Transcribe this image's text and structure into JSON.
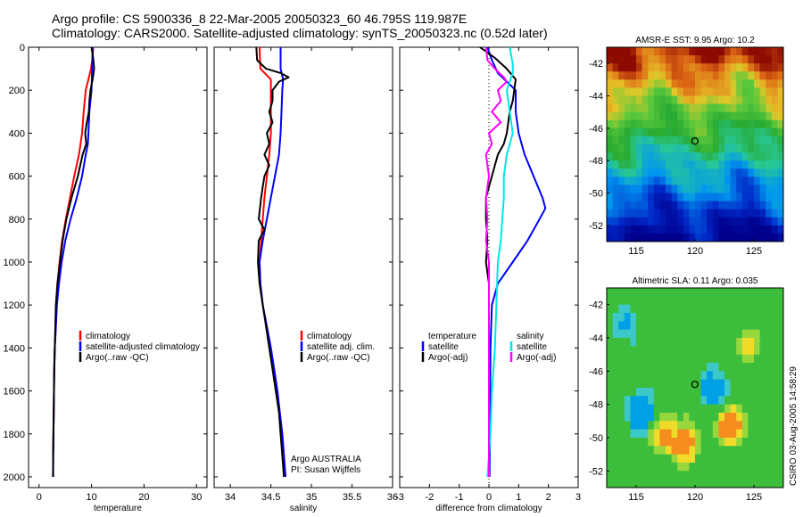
{
  "header": {
    "line1": "Argo profile: CS 5900336_8 22-Mar-2005 20050323_60 46.795S 119.987E",
    "line2": "Climatology: CARS2000. Satellite-adjusted climatology: synTS_20050323.nc (0.52d later)"
  },
  "colors": {
    "climatology": "#ff0000",
    "satellite": "#0000ff",
    "argo": "#000000",
    "salinity_satellite": "#00e5e5",
    "salinity_argo": "#ff00ff"
  },
  "chart_data": [
    {
      "id": "temperature",
      "type": "line",
      "xlabel": "temperature",
      "xlim": [
        -2,
        32
      ],
      "ylim": [
        2050,
        0
      ],
      "xticks": [
        0,
        10,
        20,
        30
      ],
      "yticks": [
        0,
        200,
        400,
        600,
        800,
        1000,
        1200,
        1400,
        1600,
        1800,
        2000
      ],
      "legend": [
        "climatology",
        "satellite-adjusted climatology",
        "Argo(..raw -QC)"
      ],
      "series": [
        {
          "name": "climatology",
          "color": "#ff0000",
          "points": [
            [
              10.3,
              0
            ],
            [
              10.2,
              50
            ],
            [
              9.9,
              100
            ],
            [
              9.4,
              150
            ],
            [
              8.9,
              200
            ],
            [
              8.5,
              300
            ],
            [
              8.2,
              400
            ],
            [
              7.6,
              500
            ],
            [
              6.7,
              600
            ],
            [
              5.9,
              700
            ],
            [
              5.1,
              800
            ],
            [
              4.4,
              900
            ],
            [
              3.9,
              1000
            ],
            [
              3.5,
              1100
            ],
            [
              3.3,
              1200
            ],
            [
              3.2,
              1300
            ],
            [
              3.0,
              1400
            ],
            [
              2.9,
              1500
            ],
            [
              2.85,
              1600
            ],
            [
              2.8,
              1700
            ],
            [
              2.75,
              1800
            ],
            [
              2.7,
              1900
            ],
            [
              2.65,
              2000
            ]
          ]
        },
        {
          "name": "satellite-adjusted climatology",
          "color": "#0000ff",
          "points": [
            [
              10.2,
              0
            ],
            [
              10.1,
              100
            ],
            [
              10.0,
              200
            ],
            [
              9.6,
              300
            ],
            [
              9.4,
              400
            ],
            [
              9.3,
              450
            ],
            [
              8.9,
              500
            ],
            [
              8.2,
              600
            ],
            [
              7.2,
              700
            ],
            [
              6.0,
              800
            ],
            [
              5.0,
              900
            ],
            [
              4.3,
              1000
            ],
            [
              3.8,
              1100
            ],
            [
              3.4,
              1200
            ],
            [
              3.2,
              1300
            ],
            [
              3.0,
              1400
            ],
            [
              2.9,
              1500
            ],
            [
              2.85,
              1600
            ],
            [
              2.8,
              1700
            ],
            [
              2.75,
              1800
            ],
            [
              2.7,
              1900
            ],
            [
              2.65,
              2000
            ]
          ]
        },
        {
          "name": "Argo(..raw -QC)",
          "color": "#000000",
          "points": [
            [
              10.0,
              0
            ],
            [
              10.3,
              50
            ],
            [
              10.5,
              100
            ],
            [
              10.2,
              150
            ],
            [
              9.8,
              200
            ],
            [
              9.6,
              250
            ],
            [
              9.5,
              300
            ],
            [
              9.1,
              350
            ],
            [
              8.8,
              400
            ],
            [
              9.0,
              450
            ],
            [
              8.3,
              500
            ],
            [
              7.4,
              600
            ],
            [
              6.2,
              700
            ],
            [
              5.2,
              800
            ],
            [
              4.5,
              900
            ],
            [
              4.0,
              1000
            ],
            [
              3.5,
              1100
            ],
            [
              3.2,
              1200
            ],
            [
              3.1,
              1300
            ],
            [
              3.0,
              1400
            ],
            [
              2.9,
              1500
            ],
            [
              2.85,
              1600
            ],
            [
              2.8,
              1700
            ],
            [
              2.75,
              1800
            ],
            [
              2.7,
              1900
            ],
            [
              2.7,
              2000
            ]
          ]
        }
      ]
    },
    {
      "id": "salinity",
      "type": "line",
      "xlabel": "salinity",
      "xlim": [
        33.8,
        36.0
      ],
      "ylim": [
        2050,
        0
      ],
      "xticks": [
        34,
        34.5,
        35,
        35.5,
        36
      ],
      "legend": [
        "climatology",
        "satellite adj. clim.",
        "Argo(..raw -QC)"
      ],
      "annotation": [
        "Argo AUSTRALIA",
        "PI: Susan Wijffels"
      ],
      "series": [
        {
          "name": "climatology",
          "color": "#ff0000",
          "points": [
            [
              34.36,
              0
            ],
            [
              34.37,
              100
            ],
            [
              34.5,
              150
            ],
            [
              34.5,
              200
            ],
            [
              34.5,
              400
            ],
            [
              34.48,
              500
            ],
            [
              34.45,
              600
            ],
            [
              34.42,
              700
            ],
            [
              34.4,
              800
            ],
            [
              34.38,
              900
            ],
            [
              34.36,
              1000
            ],
            [
              34.37,
              1100
            ],
            [
              34.4,
              1200
            ],
            [
              34.45,
              1300
            ],
            [
              34.5,
              1400
            ],
            [
              34.54,
              1500
            ],
            [
              34.58,
              1600
            ],
            [
              34.61,
              1700
            ],
            [
              34.64,
              1800
            ],
            [
              34.66,
              1900
            ],
            [
              34.68,
              2000
            ]
          ]
        },
        {
          "name": "satellite adj. clim.",
          "color": "#0000ff",
          "points": [
            [
              34.62,
              0
            ],
            [
              34.62,
              100
            ],
            [
              34.65,
              150
            ],
            [
              34.64,
              200
            ],
            [
              34.63,
              300
            ],
            [
              34.62,
              400
            ],
            [
              34.6,
              500
            ],
            [
              34.55,
              600
            ],
            [
              34.5,
              700
            ],
            [
              34.45,
              800
            ],
            [
              34.4,
              900
            ],
            [
              34.36,
              1000
            ],
            [
              34.37,
              1100
            ],
            [
              34.4,
              1200
            ],
            [
              34.45,
              1300
            ],
            [
              34.5,
              1400
            ],
            [
              34.54,
              1500
            ],
            [
              34.58,
              1600
            ],
            [
              34.61,
              1700
            ],
            [
              34.64,
              1800
            ],
            [
              34.66,
              1900
            ],
            [
              34.68,
              2000
            ]
          ]
        },
        {
          "name": "Argo(..raw -QC)",
          "color": "#000000",
          "points": [
            [
              34.32,
              0
            ],
            [
              34.33,
              60
            ],
            [
              34.44,
              100
            ],
            [
              34.62,
              120
            ],
            [
              34.72,
              140
            ],
            [
              34.6,
              160
            ],
            [
              34.52,
              200
            ],
            [
              34.52,
              250
            ],
            [
              34.48,
              300
            ],
            [
              34.52,
              350
            ],
            [
              34.45,
              400
            ],
            [
              34.48,
              450
            ],
            [
              34.42,
              500
            ],
            [
              34.48,
              550
            ],
            [
              34.42,
              600
            ],
            [
              34.4,
              650
            ],
            [
              34.38,
              700
            ],
            [
              34.35,
              800
            ],
            [
              34.42,
              850
            ],
            [
              34.35,
              900
            ],
            [
              34.34,
              1000
            ],
            [
              34.36,
              1100
            ],
            [
              34.4,
              1200
            ],
            [
              34.44,
              1300
            ],
            [
              34.48,
              1400
            ],
            [
              34.52,
              1500
            ],
            [
              34.56,
              1600
            ],
            [
              34.6,
              1700
            ],
            [
              34.62,
              1800
            ],
            [
              34.64,
              1900
            ],
            [
              34.66,
              2000
            ]
          ]
        }
      ]
    },
    {
      "id": "difference",
      "type": "line",
      "xlabel": "difference from climatology",
      "xlim": [
        -3,
        3
      ],
      "ylim": [
        2050,
        0
      ],
      "xticks": [
        -3,
        -2,
        -1,
        0,
        1,
        2,
        3
      ],
      "legend_left": [
        "temperature",
        "satellite",
        "Argo(-adj)"
      ],
      "legend_right": [
        "salinity",
        "satellite",
        "Argo(-adj)"
      ],
      "series": [
        {
          "name": "temperature satellite",
          "color": "#0000ff",
          "points": [
            [
              -0.05,
              0
            ],
            [
              0.1,
              60
            ],
            [
              0.3,
              120
            ],
            [
              0.6,
              160
            ],
            [
              0.9,
              200
            ],
            [
              0.9,
              300
            ],
            [
              1.0,
              400
            ],
            [
              1.2,
              500
            ],
            [
              1.5,
              600
            ],
            [
              1.8,
              700
            ],
            [
              1.9,
              750
            ],
            [
              1.7,
              800
            ],
            [
              1.3,
              900
            ],
            [
              0.8,
              1000
            ],
            [
              0.3,
              1100
            ],
            [
              0.1,
              1200
            ],
            [
              0.05,
              1400
            ],
            [
              0.02,
              2000
            ]
          ]
        },
        {
          "name": "temperature Argo(-adj)",
          "color": "#000000",
          "points": [
            [
              -0.3,
              0
            ],
            [
              0.2,
              50
            ],
            [
              0.6,
              100
            ],
            [
              0.9,
              150
            ],
            [
              0.8,
              250
            ],
            [
              0.7,
              300
            ],
            [
              0.6,
              400
            ],
            [
              0.5,
              450
            ],
            [
              0.3,
              500
            ],
            [
              0.1,
              600
            ],
            [
              -0.1,
              700
            ],
            [
              -0.1,
              800
            ],
            [
              -0.05,
              900
            ],
            [
              -0.1,
              1000
            ],
            [
              0.0,
              1100
            ],
            [
              0.0,
              1400
            ],
            [
              0.0,
              2000
            ]
          ]
        },
        {
          "name": "salinity satellite",
          "color": "#00e5e5",
          "points": [
            [
              0.7,
              0
            ],
            [
              0.8,
              80
            ],
            [
              0.8,
              120
            ],
            [
              0.6,
              200
            ],
            [
              0.7,
              300
            ],
            [
              0.8,
              400
            ],
            [
              0.6,
              500
            ],
            [
              0.5,
              600
            ],
            [
              0.5,
              700
            ],
            [
              0.45,
              800
            ],
            [
              0.4,
              900
            ],
            [
              0.3,
              1000
            ],
            [
              0.25,
              1200
            ],
            [
              0.2,
              1400
            ],
            [
              0.1,
              1600
            ],
            [
              0.05,
              1800
            ],
            [
              -0.05,
              2000
            ]
          ]
        },
        {
          "name": "salinity Argo(-adj)",
          "color": "#ff00ff",
          "points": [
            [
              -0.1,
              0
            ],
            [
              -0.05,
              60
            ],
            [
              0.2,
              100
            ],
            [
              0.5,
              140
            ],
            [
              0.6,
              160
            ],
            [
              0.3,
              200
            ],
            [
              0.4,
              250
            ],
            [
              0.1,
              300
            ],
            [
              0.4,
              350
            ],
            [
              0.0,
              400
            ],
            [
              0.1,
              450
            ],
            [
              -0.1,
              500
            ],
            [
              0.0,
              600
            ],
            [
              -0.1,
              700
            ],
            [
              -0.05,
              800
            ],
            [
              -0.1,
              900
            ],
            [
              0.0,
              1000
            ],
            [
              0.0,
              1200
            ],
            [
              0.0,
              2000
            ]
          ]
        }
      ]
    },
    {
      "id": "sst-map",
      "type": "heatmap",
      "title": "AMSR-E SST: 9.95 Argo: 10.2",
      "xlim": [
        112.5,
        127.5
      ],
      "ylim": [
        -53,
        -41
      ],
      "xticks": [
        115,
        120,
        125
      ],
      "yticks": [
        -42,
        -44,
        -46,
        -48,
        -50,
        -52
      ],
      "marker": [
        119.987,
        -46.795
      ]
    },
    {
      "id": "sla-map",
      "type": "heatmap",
      "title": "Altimetric SLA: 0.11 Argo: 0.035",
      "xlim": [
        112.5,
        127.5
      ],
      "ylim": [
        -53,
        -41
      ],
      "xticks": [
        115,
        120,
        125
      ],
      "yticks": [
        -42,
        -44,
        -46,
        -48,
        -50,
        -52
      ],
      "marker": [
        119.987,
        -46.795
      ]
    }
  ],
  "side_label": "CSIRO 03-Aug-2005 14:58:29"
}
